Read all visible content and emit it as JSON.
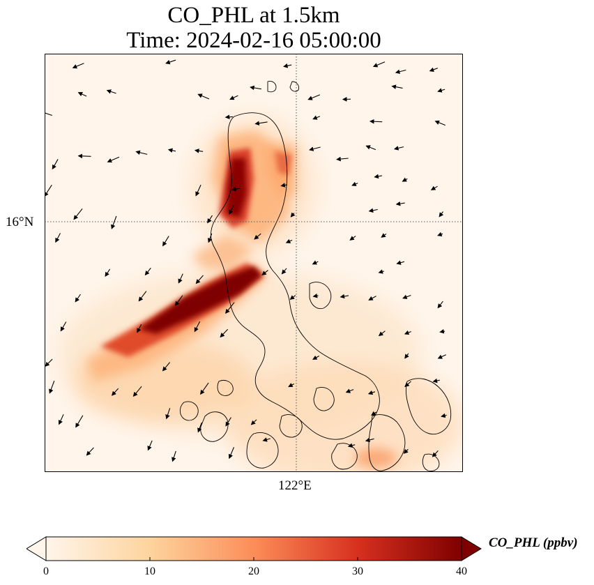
{
  "title": {
    "line1": "CO_PHL at 1.5km",
    "line2": "Time: 2024-02-16 05:00:00"
  },
  "map": {
    "variable": "CO_PHL",
    "level": "1.5km",
    "gridlines": "dotted",
    "lat_label": "16°N",
    "lon_label": "122°E",
    "lat_gridline": 16,
    "lon_gridline": 122,
    "coastline_color": "#000000",
    "field_colormap": "OrRd-like",
    "wind_vectors": "shown",
    "high_concentration_areas": [
      "band west of Luzon coast",
      "plume over northern Luzon"
    ]
  },
  "colorbar": {
    "label": "CO_PHL (ppbv)",
    "ticks": [
      "0",
      "10",
      "20",
      "30",
      "40"
    ],
    "min": 0,
    "max": 40,
    "extend": "both",
    "colors": [
      "#fff5eb",
      "#fdd49e",
      "#fc8d59",
      "#d7301f",
      "#7f0000"
    ]
  }
}
